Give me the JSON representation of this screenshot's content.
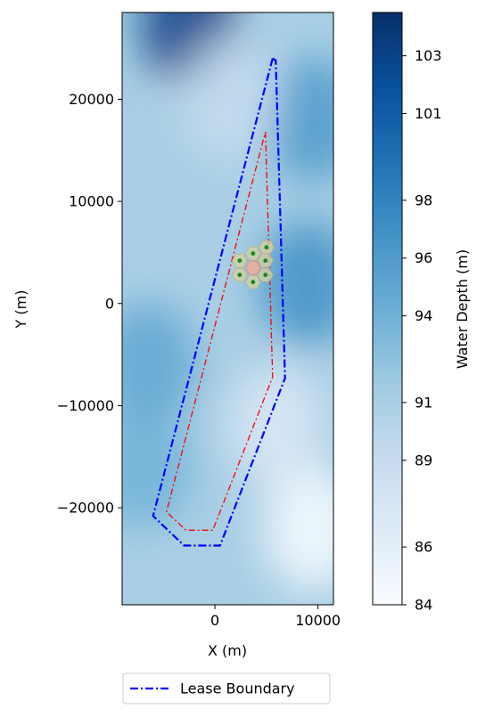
{
  "chart_data": {
    "type": "heatmap",
    "xlabel": "X (m)",
    "ylabel": "Y (m)",
    "xlim": [
      -9000,
      11500
    ],
    "ylim": [
      -29500,
      28500
    ],
    "x_ticks": [
      {
        "value": 0,
        "label": "0"
      },
      {
        "value": 10000,
        "label": "10000"
      }
    ],
    "y_ticks": [
      {
        "value": 20000,
        "label": "20000"
      },
      {
        "value": 10000,
        "label": "10000"
      },
      {
        "value": 0,
        "label": "0"
      },
      {
        "value": -10000,
        "label": "−10000"
      },
      {
        "value": -20000,
        "label": "−20000"
      }
    ],
    "colorbar": {
      "label": "Water Depth (m)",
      "range": [
        84,
        104.5
      ],
      "colormap": "Blues",
      "ticks": [
        {
          "value": 84,
          "label": "84"
        },
        {
          "value": 86,
          "label": "86"
        },
        {
          "value": 89,
          "label": "89"
        },
        {
          "value": 91,
          "label": "91"
        },
        {
          "value": 94,
          "label": "94"
        },
        {
          "value": 96,
          "label": "96"
        },
        {
          "value": 98,
          "label": "98"
        },
        {
          "value": 101,
          "label": "101"
        },
        {
          "value": 103,
          "label": "103"
        }
      ]
    },
    "legend": {
      "placement": "bottom-center",
      "entries": [
        {
          "label": "Lease Boundary",
          "color": "#0000ff",
          "style": "dash-dot"
        }
      ]
    },
    "series": [
      {
        "name": "Lease Boundary",
        "color": "#0000ff",
        "style": "dash-dot",
        "points": [
          [
            5600,
            24000
          ],
          [
            5900,
            23800
          ],
          [
            6800,
            -7300
          ],
          [
            500,
            -23700
          ],
          [
            -3000,
            -23700
          ],
          [
            -6000,
            -20800
          ],
          [
            5600,
            24000
          ]
        ]
      },
      {
        "color": "#ff0000",
        "style": "dash-dot",
        "points": [
          [
            4900,
            16800
          ],
          [
            5600,
            -7200
          ],
          [
            -200,
            -22200
          ],
          [
            -2800,
            -22200
          ],
          [
            -4700,
            -20400
          ],
          [
            4900,
            16800
          ]
        ]
      }
    ],
    "turbines": [
      {
        "x": 5000,
        "y": 5500
      },
      {
        "x": 3700,
        "y": 4900
      },
      {
        "x": 4900,
        "y": 4200
      },
      {
        "x": 2400,
        "y": 4200
      },
      {
        "x": 3700,
        "y": 3500
      },
      {
        "x": 2400,
        "y": 2800
      },
      {
        "x": 4900,
        "y": 2800
      },
      {
        "x": 3700,
        "y": 2100
      }
    ],
    "center_marker": {
      "x": 3700,
      "y": 3500
    },
    "depth_field": {
      "background": 91,
      "features": [
        {
          "kind": "deep",
          "x": -2500,
          "y": 27500,
          "depth": 103
        },
        {
          "kind": "deep",
          "x": 9500,
          "y": 18000,
          "depth": 96
        },
        {
          "kind": "deep",
          "x": 9000,
          "y": 2000,
          "depth": 97
        },
        {
          "kind": "deep",
          "x": -6500,
          "y": -6000,
          "depth": 95
        },
        {
          "kind": "deep",
          "x": -7000,
          "y": -16000,
          "depth": 94
        },
        {
          "kind": "shallow",
          "x": 9500,
          "y": -22000,
          "depth": 84
        },
        {
          "kind": "shallow",
          "x": 6000,
          "y": -12000,
          "depth": 87
        },
        {
          "kind": "shallow",
          "x": 1500,
          "y": 20000,
          "depth": 89
        }
      ]
    }
  }
}
